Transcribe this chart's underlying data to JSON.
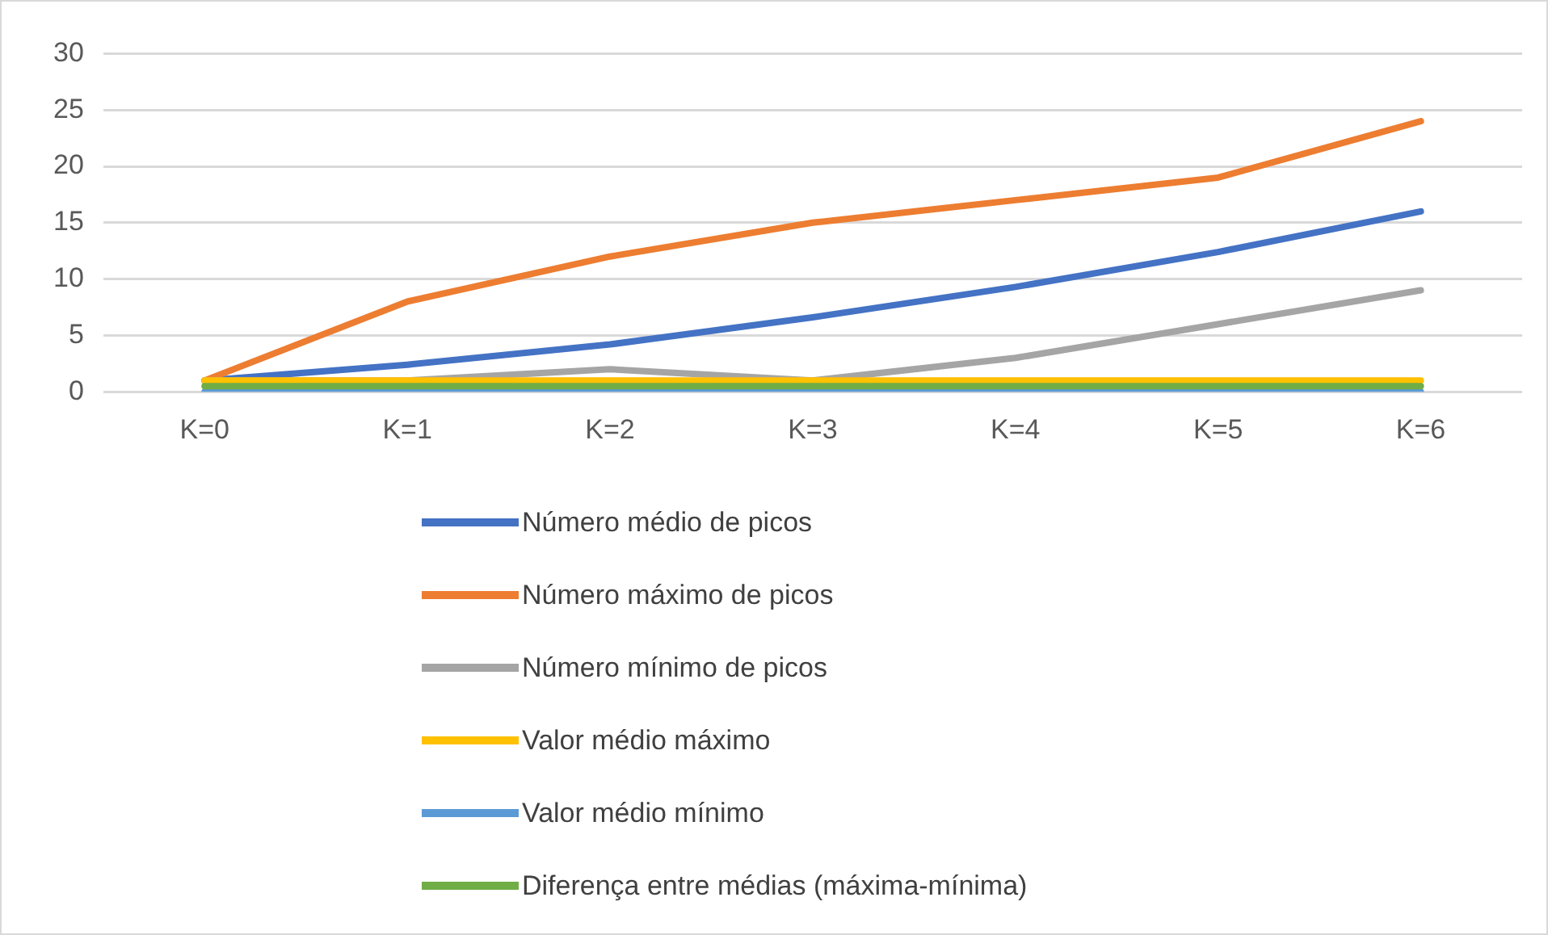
{
  "chart_data": {
    "type": "line",
    "categories": [
      "K=0",
      "K=1",
      "K=2",
      "K=3",
      "K=4",
      "K=5",
      "K=6"
    ],
    "series": [
      {
        "name": "Número médio de picos",
        "color": "#4472c4",
        "values": [
          1,
          2.4,
          4.2,
          6.6,
          9.3,
          12.4,
          16
        ]
      },
      {
        "name": "Número máximo de picos",
        "color": "#ed7d31",
        "values": [
          1,
          8,
          12,
          15,
          17,
          19,
          24
        ]
      },
      {
        "name": "Número mínimo  de picos",
        "color": "#a5a5a5",
        "values": [
          1,
          1,
          2,
          1,
          3,
          6,
          9
        ]
      },
      {
        "name": "Valor médio máximo",
        "color": "#ffc000",
        "values": [
          1,
          1,
          1,
          1,
          1,
          1,
          1
        ]
      },
      {
        "name": "Valor médio mínimo",
        "color": "#5b9bd5",
        "values": [
          0,
          0,
          0,
          0,
          0,
          0,
          0
        ]
      },
      {
        "name": "Diferença entre médias (máxima-mínima)",
        "color": "#70ad47",
        "values": [
          0.5,
          0.5,
          0.5,
          0.5,
          0.5,
          0.5,
          0.5
        ]
      }
    ],
    "ylim": [
      0,
      30
    ],
    "yticks": [
      0,
      5,
      10,
      15,
      20,
      25,
      30
    ],
    "grid": "y",
    "legend": "bottom",
    "marker": "none",
    "line_style": "solid"
  }
}
